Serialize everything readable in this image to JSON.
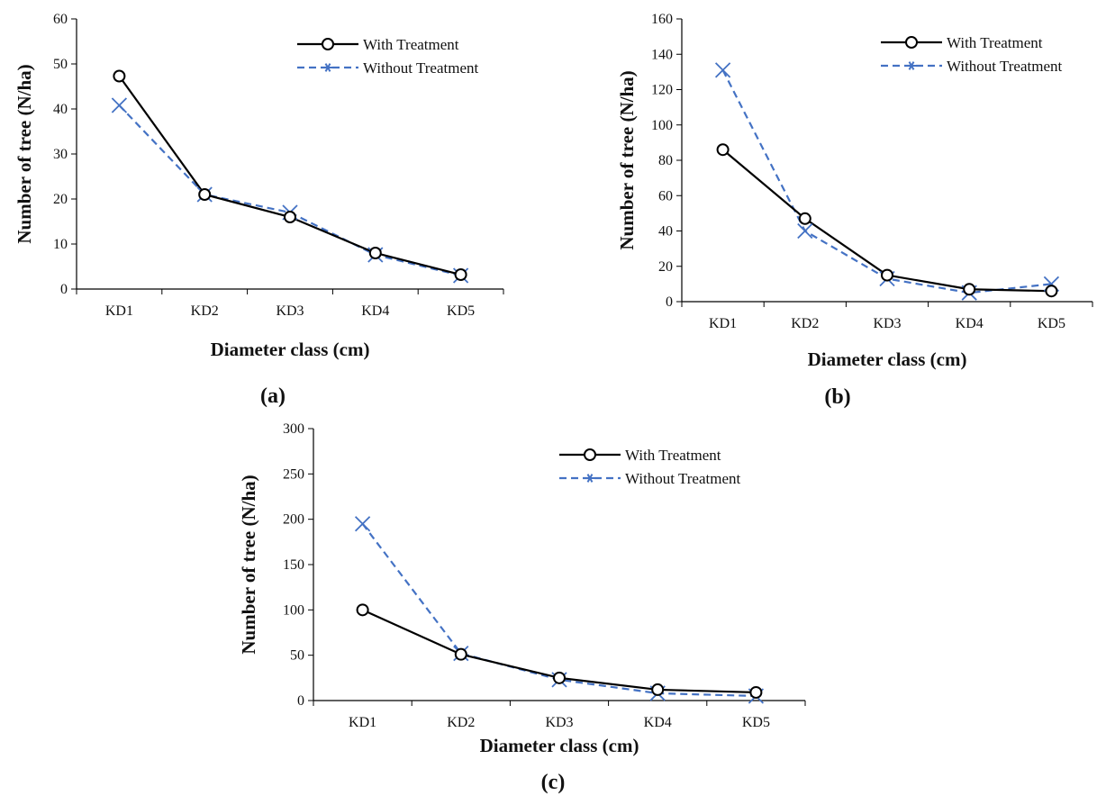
{
  "colors": {
    "with": "#000000",
    "without": "#4472C4"
  },
  "chart_data": [
    {
      "type": "line",
      "panel_label": "(a)",
      "categories": [
        "KD1",
        "KD2",
        "KD3",
        "KD4",
        "KD5"
      ],
      "series": [
        {
          "name": "With Treatment",
          "values": [
            47.3,
            21.0,
            16.0,
            8.0,
            3.2
          ],
          "marker": "circle",
          "line": "solid"
        },
        {
          "name": "Without Treatment",
          "values": [
            40.8,
            21.0,
            17.0,
            7.6,
            3.0
          ],
          "marker": "x",
          "line": "dashed"
        }
      ],
      "xlabel": "Diameter class (cm)",
      "ylabel": "Number of tree (N/ha)",
      "ylim": [
        0,
        60
      ],
      "yticks": [
        0,
        10,
        20,
        30,
        40,
        50,
        60
      ],
      "grid": false,
      "legend": "top-right"
    },
    {
      "type": "line",
      "panel_label": "(b)",
      "categories": [
        "KD1",
        "KD2",
        "KD3",
        "KD4",
        "KD5"
      ],
      "series": [
        {
          "name": "With Treatment",
          "values": [
            86,
            47,
            15,
            7,
            6
          ],
          "marker": "circle",
          "line": "solid"
        },
        {
          "name": "Without Treatment",
          "values": [
            131,
            40,
            13,
            5,
            10
          ],
          "marker": "x",
          "line": "dashed"
        }
      ],
      "xlabel": "Diameter class (cm)",
      "ylabel": "Number of tree (N/ha)",
      "ylim": [
        0,
        160
      ],
      "yticks": [
        0,
        20,
        40,
        60,
        80,
        100,
        120,
        140,
        160
      ],
      "grid": false,
      "legend": "top-right"
    },
    {
      "type": "line",
      "panel_label": "(c)",
      "categories": [
        "KD1",
        "KD2",
        "KD3",
        "KD4",
        "KD5"
      ],
      "series": [
        {
          "name": "With Treatment",
          "values": [
            100,
            51,
            25,
            12,
            9
          ],
          "marker": "circle",
          "line": "solid"
        },
        {
          "name": "Without Treatment",
          "values": [
            195,
            52,
            23,
            8,
            5
          ],
          "marker": "x",
          "line": "dashed"
        }
      ],
      "xlabel": "Diameter class (cm)",
      "ylabel": "Number of tree (N/ha)",
      "ylim": [
        0,
        300
      ],
      "yticks": [
        0,
        50,
        100,
        150,
        200,
        250,
        300
      ],
      "grid": false,
      "legend": "top-right"
    }
  ]
}
